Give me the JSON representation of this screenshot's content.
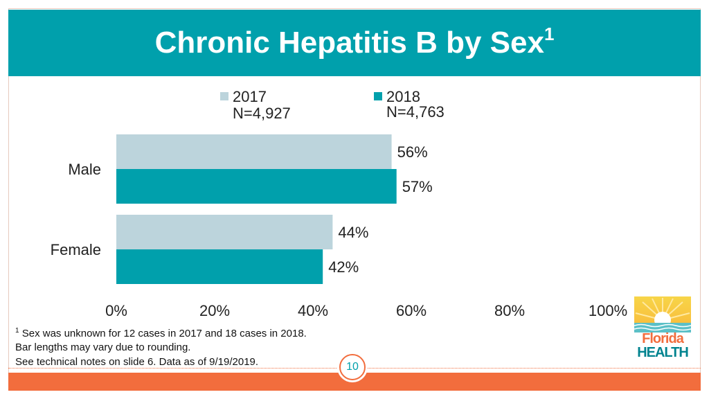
{
  "header": {
    "title": "Chronic Hepatitis B by Sex",
    "title_superscript": "1"
  },
  "legend": {
    "items": [
      {
        "label": "2017",
        "n": "N=4,927",
        "color": "#bcd4dc"
      },
      {
        "label": "2018",
        "n": "N=4,763",
        "color": "#00a0ac"
      }
    ]
  },
  "chart_data": {
    "type": "bar",
    "orientation": "horizontal",
    "title": "Chronic Hepatitis B by Sex",
    "categories": [
      "Male",
      "Female"
    ],
    "series": [
      {
        "name": "2017",
        "values": [
          56,
          44
        ],
        "labels": [
          "56%",
          "44%"
        ],
        "color": "#bcd4dc"
      },
      {
        "name": "2018",
        "values": [
          57,
          42
        ],
        "labels": [
          "57%",
          "42%"
        ],
        "color": "#00a0ac"
      }
    ],
    "xlim": [
      0,
      100
    ],
    "xticks": [
      0,
      20,
      40,
      60,
      80,
      100
    ],
    "xtick_labels": [
      "0%",
      "20%",
      "40%",
      "60%",
      "80%",
      "100%"
    ],
    "grid": false,
    "legend_position": "top"
  },
  "footnote": {
    "marker": "1",
    "line1": "Sex was unknown for 12 cases in 2017 and 18 cases in 2018.",
    "line2": "Bar lengths may vary due to rounding.",
    "line3": "See technical notes on slide 6. Data as of 9/19/2019."
  },
  "page": {
    "number": "10"
  },
  "logo": {
    "line1": "Florida",
    "line2": "HEALTH"
  }
}
